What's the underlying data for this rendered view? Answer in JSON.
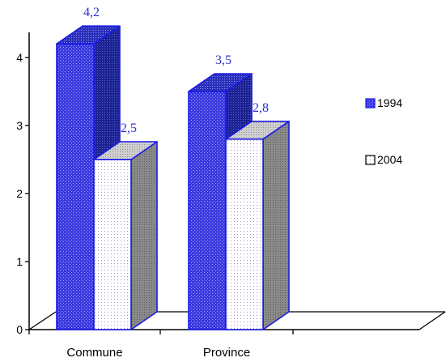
{
  "chart_data": {
    "type": "bar",
    "categories": [
      "Commune",
      "Province"
    ],
    "series": [
      {
        "name": "1994",
        "values": [
          4.2,
          3.5
        ],
        "labels": [
          "4,2",
          "3,5"
        ]
      },
      {
        "name": "2004",
        "values": [
          2.5,
          2.8
        ],
        "labels": [
          "2,5",
          "2,8"
        ]
      }
    ],
    "y_ticks": [
      "0",
      "1",
      "2",
      "3",
      "4"
    ],
    "ylim": [
      0,
      4
    ],
    "grid": false,
    "legend_position": "right",
    "colors": {
      "series_1994_front": "#3a3ae0",
      "series_1994_side": "#222aa0",
      "series_1994_dark": "#232aa5",
      "series_2004_front": "#ffffff",
      "series_2004_top": "#c8c8c8",
      "series_2004_side": "#8a8a8a",
      "edge": "#1a1ae8",
      "axis": "#000000",
      "label": "#2a2fd6"
    }
  }
}
